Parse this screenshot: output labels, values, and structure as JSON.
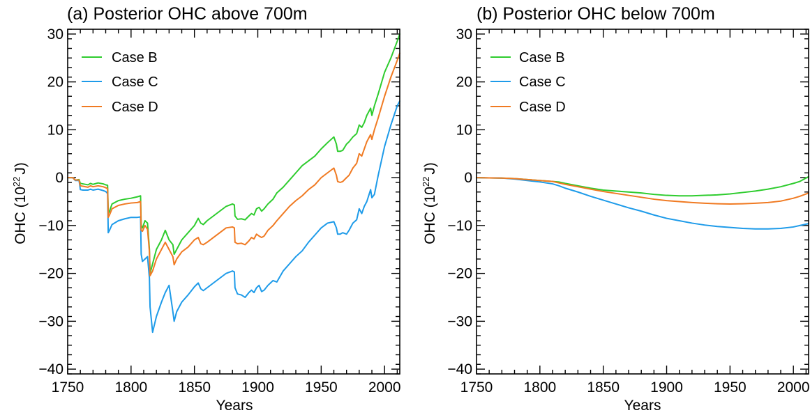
{
  "colors": {
    "Case B": "#2ecc2e",
    "Case C": "#1e9be9",
    "Case D": "#f07a22"
  },
  "chart_data": [
    {
      "type": "line",
      "title": "(a) Posterior OHC above 700m",
      "xlabel": "Years",
      "ylabel_main": "OHC (10",
      "ylabel_exp": "22",
      "ylabel_unit": "J)",
      "xlim": [
        1750,
        2012
      ],
      "ylim": [
        -41,
        31
      ],
      "xticks": [
        1750,
        1800,
        1850,
        1900,
        1950,
        2000
      ],
      "yticks": [
        -40,
        -30,
        -20,
        -10,
        0,
        10,
        20,
        30
      ],
      "ytick_labels": [
        "−40",
        "−30",
        "−20",
        "−10",
        "0",
        "10",
        "20",
        "30"
      ],
      "grid": false,
      "legend_position": "top-left",
      "series": [
        {
          "name": "Case B",
          "x": [
            1750,
            1754,
            1756,
            1759,
            1760,
            1762,
            1766,
            1768,
            1770,
            1774,
            1778,
            1780,
            1781.5,
            1782,
            1783,
            1785,
            1790,
            1795,
            1800,
            1805,
            1807.5,
            1808,
            1809,
            1811,
            1813,
            1814.5,
            1815,
            1817,
            1820,
            1824,
            1827,
            1830,
            1833,
            1834,
            1836,
            1840,
            1845,
            1850,
            1853,
            1855,
            1857,
            1860,
            1865,
            1870,
            1875,
            1880,
            1881.5,
            1882,
            1884,
            1887,
            1890,
            1893,
            1895,
            1897,
            1899,
            1901,
            1903,
            1905,
            1908,
            1910,
            1912,
            1915,
            1920,
            1925,
            1930,
            1935,
            1940,
            1945,
            1950,
            1955,
            1960,
            1962,
            1963,
            1965,
            1967,
            1970,
            1972,
            1975,
            1978,
            1980,
            1982,
            1984,
            1986,
            1989,
            1990,
            1992,
            1995,
            2000,
            2005,
            2010,
            2012
          ],
          "values": [
            0,
            0,
            -0.5,
            -0.4,
            -1.2,
            -1.3,
            -1.5,
            -1.2,
            -1.4,
            -1.1,
            -1.3,
            -1.5,
            -1.6,
            -7.5,
            -7,
            -5.5,
            -4.8,
            -4.5,
            -4.3,
            -4,
            -3.8,
            -10,
            -10.5,
            -9,
            -9.5,
            -15,
            -20,
            -18,
            -15,
            -13,
            -11,
            -13,
            -14,
            -16,
            -15,
            -13,
            -11.5,
            -10,
            -8.5,
            -9.5,
            -9.8,
            -9,
            -8,
            -7,
            -6,
            -5.5,
            -5.7,
            -8,
            -8.7,
            -8.6,
            -8.8,
            -8,
            -7.5,
            -7.8,
            -6.5,
            -6.2,
            -7,
            -6.5,
            -5.5,
            -5,
            -4.5,
            -3.2,
            -2,
            -0.5,
            1,
            2.5,
            3.5,
            4.5,
            6,
            7.3,
            8.5,
            7,
            5.5,
            5.5,
            5.7,
            7,
            7.5,
            8.5,
            9.2,
            11,
            10.5,
            11.5,
            13,
            14.5,
            13,
            15,
            17.5,
            22,
            25,
            28.5,
            30
          ]
        },
        {
          "name": "Case C",
          "x": [
            1750,
            1754,
            1756,
            1759,
            1760,
            1762,
            1766,
            1768,
            1770,
            1774,
            1778,
            1780,
            1781.5,
            1782,
            1783,
            1785,
            1790,
            1795,
            1800,
            1805,
            1807.5,
            1808,
            1809,
            1811,
            1813,
            1814.5,
            1815,
            1817,
            1820,
            1824,
            1827,
            1830,
            1833,
            1834,
            1836,
            1840,
            1845,
            1850,
            1853,
            1855,
            1857,
            1860,
            1865,
            1870,
            1875,
            1880,
            1881.5,
            1882,
            1884,
            1887,
            1890,
            1893,
            1895,
            1897,
            1899,
            1901,
            1903,
            1905,
            1908,
            1910,
            1912,
            1915,
            1920,
            1925,
            1930,
            1935,
            1940,
            1945,
            1950,
            1955,
            1960,
            1962,
            1963,
            1965,
            1967,
            1970,
            1972,
            1975,
            1978,
            1980,
            1982,
            1984,
            1986,
            1989,
            1990,
            1992,
            1995,
            2000,
            2005,
            2010,
            2012
          ],
          "values": [
            0,
            0,
            -0.6,
            -0.6,
            -2.5,
            -2.6,
            -2.6,
            -2.4,
            -2.6,
            -2.4,
            -2.7,
            -2.9,
            -3.3,
            -11.5,
            -11,
            -9.8,
            -9,
            -8.6,
            -8.3,
            -8.3,
            -8.2,
            -16,
            -17.5,
            -17,
            -16.5,
            -21,
            -27,
            -32.3,
            -29,
            -26,
            -24,
            -22.5,
            -28,
            -30,
            -28,
            -26,
            -24.5,
            -22.8,
            -22,
            -23.2,
            -23.6,
            -23,
            -22,
            -21,
            -20,
            -19.5,
            -19.7,
            -23,
            -24.3,
            -24.5,
            -25,
            -24,
            -23.5,
            -24,
            -23,
            -22.5,
            -23.8,
            -23.5,
            -22.5,
            -22,
            -21.5,
            -21.8,
            -19.5,
            -18,
            -16.5,
            -15.3,
            -13.5,
            -12,
            -10.5,
            -9.5,
            -9.2,
            -10.5,
            -11.8,
            -11.8,
            -11.5,
            -11.8,
            -11,
            -9.5,
            -8.8,
            -6.5,
            -7.5,
            -6,
            -5,
            -2.5,
            -4.2,
            -3.5,
            0.5,
            6.5,
            11,
            15,
            16
          ]
        },
        {
          "name": "Case D",
          "x": [
            1750,
            1754,
            1756,
            1759,
            1760,
            1762,
            1766,
            1768,
            1770,
            1774,
            1778,
            1780,
            1781.5,
            1782,
            1783,
            1785,
            1790,
            1795,
            1800,
            1805,
            1807.5,
            1808,
            1809,
            1811,
            1813,
            1814.5,
            1815,
            1817,
            1820,
            1824,
            1827,
            1830,
            1833,
            1834,
            1836,
            1840,
            1845,
            1850,
            1853,
            1855,
            1857,
            1860,
            1865,
            1870,
            1875,
            1880,
            1881.5,
            1882,
            1884,
            1887,
            1890,
            1893,
            1895,
            1897,
            1899,
            1901,
            1903,
            1905,
            1908,
            1910,
            1912,
            1915,
            1920,
            1925,
            1930,
            1935,
            1940,
            1945,
            1950,
            1955,
            1960,
            1962,
            1963,
            1965,
            1967,
            1970,
            1972,
            1975,
            1978,
            1980,
            1982,
            1984,
            1986,
            1989,
            1990,
            1992,
            1995,
            2000,
            2005,
            2010,
            2012
          ],
          "values": [
            0,
            0,
            -0.5,
            -0.5,
            -1.7,
            -1.8,
            -2,
            -1.7,
            -1.9,
            -1.7,
            -1.9,
            -2.1,
            -2.3,
            -8.3,
            -7.8,
            -6.5,
            -5.8,
            -5.5,
            -5.3,
            -5.2,
            -5,
            -11,
            -11.2,
            -10,
            -10.8,
            -15.5,
            -20.5,
            -19.5,
            -17,
            -15,
            -13.5,
            -15,
            -16.5,
            -18.2,
            -17,
            -15.5,
            -14.5,
            -13,
            -12.5,
            -13.8,
            -14,
            -13.5,
            -12.5,
            -11.5,
            -10.5,
            -10.3,
            -10.5,
            -13.5,
            -13.8,
            -13.7,
            -14,
            -13.2,
            -12.5,
            -12.8,
            -11.8,
            -12.2,
            -12.5,
            -12.2,
            -11,
            -10.5,
            -10,
            -9,
            -7.5,
            -6,
            -4.8,
            -3.8,
            -2.5,
            -1.5,
            0,
            1,
            2,
            0.5,
            -0.8,
            -1,
            -0.8,
            0,
            0.5,
            2,
            3,
            5,
            4.5,
            6,
            7.5,
            9,
            8,
            10,
            12.5,
            17,
            21,
            24.5,
            26
          ]
        }
      ]
    },
    {
      "type": "line",
      "title": "(b) Posterior OHC below 700m",
      "xlabel": "Years",
      "ylabel_main": "OHC (10",
      "ylabel_exp": "22",
      "ylabel_unit": "J)",
      "xlim": [
        1750,
        2012
      ],
      "ylim": [
        -41,
        31
      ],
      "xticks": [
        1750,
        1800,
        1850,
        1900,
        1950,
        2000
      ],
      "yticks": [
        -40,
        -30,
        -20,
        -10,
        0,
        10,
        20,
        30
      ],
      "ytick_labels": [
        "−40",
        "−30",
        "−20",
        "−10",
        "0",
        "10",
        "20",
        "30"
      ],
      "grid": false,
      "legend_position": "top-left",
      "series": [
        {
          "name": "Case B",
          "x": [
            1750,
            1760,
            1770,
            1780,
            1790,
            1800,
            1810,
            1815,
            1820,
            1830,
            1840,
            1850,
            1860,
            1870,
            1880,
            1890,
            1900,
            1910,
            1920,
            1930,
            1940,
            1950,
            1960,
            1970,
            1980,
            1990,
            2000,
            2005,
            2012
          ],
          "values": [
            0,
            -0.05,
            -0.1,
            -0.2,
            -0.4,
            -0.6,
            -0.8,
            -0.9,
            -1.2,
            -1.7,
            -2.2,
            -2.6,
            -2.8,
            -3,
            -3.2,
            -3.5,
            -3.7,
            -3.8,
            -3.8,
            -3.7,
            -3.6,
            -3.4,
            -3.1,
            -2.8,
            -2.4,
            -1.9,
            -1.2,
            -0.8,
            0.2
          ]
        },
        {
          "name": "Case C",
          "x": [
            1750,
            1760,
            1770,
            1780,
            1790,
            1800,
            1810,
            1815,
            1820,
            1830,
            1840,
            1850,
            1860,
            1870,
            1880,
            1890,
            1900,
            1910,
            1920,
            1930,
            1940,
            1950,
            1960,
            1970,
            1980,
            1990,
            2000,
            2005,
            2012
          ],
          "values": [
            0,
            -0.05,
            -0.1,
            -0.3,
            -0.6,
            -0.9,
            -1.3,
            -1.7,
            -2.2,
            -3,
            -3.9,
            -4.7,
            -5.5,
            -6.3,
            -7,
            -7.8,
            -8.5,
            -9,
            -9.5,
            -9.9,
            -10.2,
            -10.4,
            -10.6,
            -10.7,
            -10.7,
            -10.6,
            -10.3,
            -10,
            -9.6
          ]
        },
        {
          "name": "Case D",
          "x": [
            1750,
            1760,
            1770,
            1780,
            1790,
            1800,
            1810,
            1815,
            1820,
            1830,
            1840,
            1850,
            1860,
            1870,
            1880,
            1890,
            1900,
            1910,
            1920,
            1930,
            1940,
            1950,
            1960,
            1970,
            1980,
            1990,
            2000,
            2005,
            2012
          ],
          "values": [
            0,
            -0.05,
            -0.1,
            -0.2,
            -0.4,
            -0.6,
            -0.8,
            -1.1,
            -1.4,
            -1.9,
            -2.4,
            -2.9,
            -3.3,
            -3.7,
            -4.1,
            -4.5,
            -4.8,
            -5,
            -5.2,
            -5.35,
            -5.45,
            -5.5,
            -5.45,
            -5.35,
            -5.2,
            -4.9,
            -4.3,
            -3.9,
            -3.2
          ]
        }
      ]
    }
  ]
}
